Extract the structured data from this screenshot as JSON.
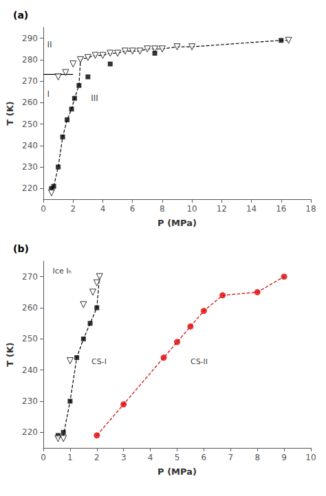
{
  "chart_data": [
    {
      "type": "scatter",
      "title": "(a)",
      "xlabel": "P (MPa)",
      "ylabel": "T (K)",
      "xlim": [
        0,
        18
      ],
      "ylim": [
        215,
        295
      ],
      "xticks": [
        0,
        2,
        4,
        6,
        8,
        10,
        12,
        14,
        16,
        18
      ],
      "yticks": [
        220,
        230,
        240,
        250,
        260,
        270,
        280,
        290
      ],
      "grid": false,
      "series": [
        {
          "type": "line",
          "line_style": "dashed",
          "color": "#000000",
          "x": [
            0.55,
            0.7,
            1.0,
            1.3,
            1.6,
            1.9,
            2.1,
            2.4,
            2.5,
            3.0,
            3.5,
            4.0,
            4.5,
            5.0,
            5.5,
            6.0,
            6.5,
            7.0,
            7.5,
            8.0,
            9.0,
            10.0,
            16.0,
            16.5
          ],
          "values": [
            219,
            221,
            230,
            244,
            252,
            257,
            262,
            268,
            280,
            281,
            282,
            282,
            283,
            283,
            284,
            284,
            284,
            285,
            285,
            285,
            286,
            286,
            289,
            289
          ]
        },
        {
          "type": "line",
          "line_style": "solid",
          "color": "#000000",
          "x": [
            0,
            2.0
          ],
          "values": [
            273.15,
            273.15
          ]
        },
        {
          "type": "scatter",
          "marker": "square",
          "color": "#000000",
          "x": [
            0.55,
            0.7,
            1.0,
            1.3,
            1.6,
            1.9,
            2.1,
            2.4,
            3.0,
            4.5,
            7.5,
            16.0
          ],
          "values": [
            220,
            221,
            230,
            244,
            252,
            257,
            262,
            268,
            272,
            278,
            283,
            289
          ]
        },
        {
          "type": "scatter",
          "marker": "triangle-down-open",
          "color": "#000000",
          "x": [
            0.55,
            1.0,
            1.5,
            2.0,
            2.5,
            3.0,
            3.5,
            4.0,
            4.5,
            5.0,
            5.5,
            6.0,
            6.5,
            7.0,
            7.5,
            8.0,
            9.0,
            10.0,
            16.5
          ],
          "values": [
            218,
            272,
            274,
            278,
            280,
            281,
            282,
            282,
            283,
            283,
            284,
            284,
            284,
            285,
            285,
            285,
            286,
            286,
            289
          ]
        }
      ],
      "annotations": [
        {
          "text": "II",
          "x": 0.25,
          "y": 289
        },
        {
          "text": "I",
          "x": 0.25,
          "y": 266
        },
        {
          "text": "III",
          "x": 3.2,
          "y": 264
        }
      ]
    },
    {
      "type": "scatter",
      "title": "(b)",
      "xlabel": "P (MPa)",
      "ylabel": "T (K)",
      "xlim": [
        0,
        10
      ],
      "ylim": [
        215,
        275
      ],
      "xticks": [
        0,
        1,
        2,
        3,
        4,
        5,
        6,
        7,
        8,
        9,
        10
      ],
      "yticks": [
        220,
        230,
        240,
        250,
        260,
        270
      ],
      "grid": false,
      "series": [
        {
          "type": "line",
          "line_style": "dashed",
          "color": "#000000",
          "x": [
            0.55,
            0.75,
            1.0,
            1.25,
            1.5,
            1.75,
            2.0,
            2.1
          ],
          "values": [
            218,
            219,
            230,
            244,
            250,
            255,
            260,
            270
          ]
        },
        {
          "type": "line",
          "line_style": "dashed",
          "color": "#cc0000",
          "x": [
            2.0,
            3.0,
            4.5,
            5.0,
            5.5,
            6.0,
            6.7,
            8.0,
            9.0
          ],
          "values": [
            219,
            229,
            244,
            249,
            254,
            259,
            264,
            265,
            270
          ]
        },
        {
          "type": "scatter",
          "marker": "square",
          "color": "#000000",
          "x": [
            0.55,
            0.75,
            1.0,
            1.25,
            1.5,
            1.75,
            2.0
          ],
          "values": [
            219,
            220,
            230,
            244,
            250,
            255,
            260
          ]
        },
        {
          "type": "scatter",
          "marker": "triangle-down-open",
          "color": "#000000",
          "x": [
            0.55,
            0.75,
            1.0,
            1.5,
            1.85,
            2.0,
            2.1
          ],
          "values": [
            218,
            218,
            243,
            261,
            265,
            268,
            270
          ]
        },
        {
          "type": "scatter",
          "marker": "circle",
          "color": "#e00000",
          "x": [
            2.0,
            3.0,
            4.5,
            5.0,
            5.5,
            6.0,
            6.7,
            8.0,
            9.0
          ],
          "values": [
            219,
            229,
            244,
            249,
            254,
            259,
            264,
            265,
            270
          ]
        }
      ],
      "annotations": [
        {
          "text": "Ice Iₕ",
          "x": 0.35,
          "y": 273
        },
        {
          "text": "CS-I",
          "x": 1.8,
          "y": 244
        },
        {
          "text": "CS-II",
          "x": 5.5,
          "y": 244
        }
      ]
    }
  ]
}
